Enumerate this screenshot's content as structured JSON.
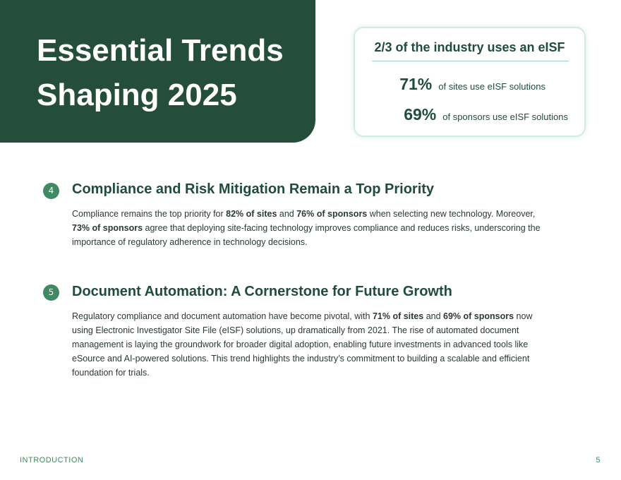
{
  "header": {
    "title_lines": [
      "Essential Trends",
      "Shaping 2025"
    ]
  },
  "stat_card": {
    "title": "2/3 of the industry uses an eISF",
    "stats": [
      {
        "value": "71%",
        "label": "of sites use eISF solutions"
      },
      {
        "value": "69%",
        "label": "of sponsors  use eISF solutions"
      }
    ]
  },
  "sections": [
    {
      "number": "4",
      "heading": "Compliance and Risk Mitigation Remain a Top Priority",
      "body": [
        {
          "text": "Compliance remains the top priority for "
        },
        {
          "text": "82% of sites",
          "bold": true
        },
        {
          "text": " and "
        },
        {
          "text": "76% of sponsors",
          "bold": true
        },
        {
          "text": " when selecting new technology. Moreover, "
        },
        {
          "text": "73% of sponsors",
          "bold": true
        },
        {
          "text": " agree that deploying site-facing technology improves compliance and reduces risks, underscoring the importance of regulatory adherence in technology decisions."
        }
      ]
    },
    {
      "number": "5",
      "heading": "Document Automation: A Cornerstone for Future Growth",
      "body": [
        {
          "text": "Regulatory compliance and document automation have become pivotal, with "
        },
        {
          "text": "71% of sites",
          "bold": true
        },
        {
          "text": " and "
        },
        {
          "text": "69% of sponsors",
          "bold": true
        },
        {
          "text": " now using Electronic Investigator Site File (eISF) solutions, up dramatically from 2021. The rise of automated document management is laying the groundwork for broader digital adoption, enabling future investments in advanced tools like eSource and AI-powered solutions. This trend highlights the industry’s commitment to building a scalable and efficient foundation for trials."
        }
      ]
    }
  ],
  "footer": {
    "section": "INTRODUCTION",
    "page": "5"
  }
}
